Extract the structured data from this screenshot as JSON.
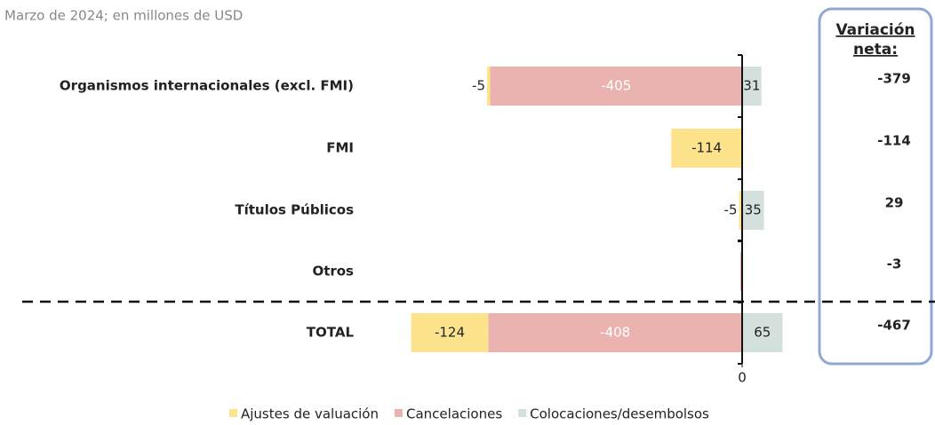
{
  "chart_data": {
    "type": "stacked-bar-horizontal",
    "subtitle": "Marzo de 2024; en millones de USD",
    "categories": [
      "Organismos internacionales (excl. FMI)",
      "FMI",
      "Títulos Públicos",
      "Otros",
      "TOTAL"
    ],
    "series": [
      {
        "name": "Ajustes de valuación",
        "color": "#fde38c",
        "values": [
          -5,
          -114,
          -5,
          0,
          -124
        ],
        "value_labels": [
          "-5",
          "-114",
          "-5",
          null,
          "-124"
        ]
      },
      {
        "name": "Cancelaciones",
        "color": "#ebb3b0",
        "values": [
          -405,
          0,
          0,
          -3,
          -408
        ],
        "value_labels": [
          "-405",
          null,
          null,
          null,
          "-408"
        ]
      },
      {
        "name": "Colocaciones/desembolsos",
        "color": "#d3e0dc",
        "values": [
          31,
          0,
          35,
          0,
          65
        ],
        "value_labels": [
          "31",
          null,
          "35",
          null,
          "65"
        ]
      }
    ],
    "net_title_lines": [
      "Variación",
      "neta:"
    ],
    "net_values": [
      -379,
      -114,
      29,
      -3,
      -467
    ],
    "xlim": [
      -600,
      100
    ],
    "xticks": [
      0
    ],
    "legend": "bottom"
  }
}
